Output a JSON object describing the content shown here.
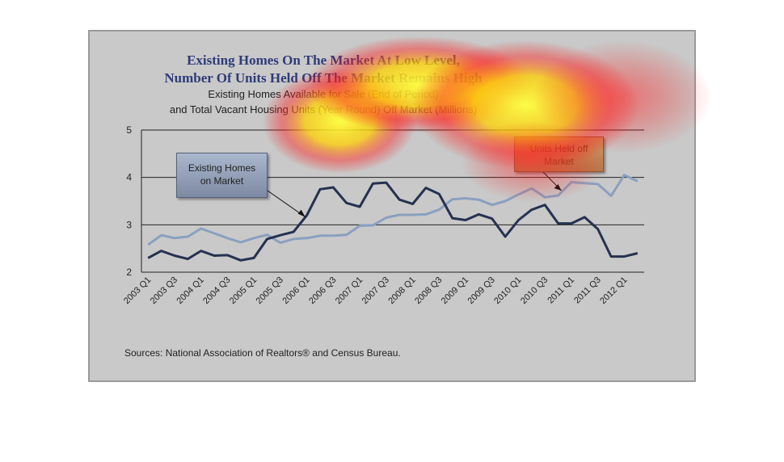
{
  "title": {
    "line1": "Existing Homes On The Market At Low Level,",
    "line2": "Number Of Units Held Off The Market Remains High",
    "subtitle1": "Existing Homes Available for Sale (End of Period)",
    "subtitle2": "and Total Vacant Housing Units (Year Round) Off Market (Millions)"
  },
  "callouts": {
    "existing_line1": "Existing Homes",
    "existing_line2": "on Market",
    "held_line1": "Units Held off",
    "held_line2": "Market"
  },
  "sources": "Sources: National Association of Realtors® and Census Bureau.",
  "colors": {
    "existing_series": "#25314f",
    "held_series": "#8aa0bf",
    "panel_bg": "#c9c9c9",
    "title": "#2f3b78"
  },
  "chart_data": {
    "type": "line",
    "title": "Existing Homes On The Market At Low Level, Number Of Units Held Off The Market Remains High",
    "subtitle": "Existing Homes Available for Sale (End of Period) and Total Vacant Housing Units (Year Round) Off Market (Millions)",
    "xlabel": "",
    "ylabel": "",
    "ylim": [
      2,
      5
    ],
    "yticks": [
      2,
      3,
      4,
      5
    ],
    "grid": true,
    "x": [
      "2003 Q1",
      "2003 Q2",
      "2003 Q3",
      "2003 Q4",
      "2004 Q1",
      "2004 Q2",
      "2004 Q3",
      "2004 Q4",
      "2005 Q1",
      "2005 Q2",
      "2005 Q3",
      "2005 Q4",
      "2006 Q1",
      "2006 Q2",
      "2006 Q3",
      "2006 Q4",
      "2007 Q1",
      "2007 Q2",
      "2007 Q3",
      "2007 Q4",
      "2008 Q1",
      "2008 Q2",
      "2008 Q3",
      "2008 Q4",
      "2009 Q1",
      "2009 Q2",
      "2009 Q3",
      "2009 Q4",
      "2010 Q1",
      "2010 Q2",
      "2010 Q3",
      "2010 Q4",
      "2011 Q1",
      "2011 Q2",
      "2011 Q3",
      "2011 Q4",
      "2012 Q1",
      "2012 Q2"
    ],
    "xtick_labels": [
      "2003 Q1",
      "2003 Q3",
      "2004 Q1",
      "2004 Q3",
      "2005 Q1",
      "2005 Q3",
      "2006 Q1",
      "2006 Q3",
      "2007 Q1",
      "2007 Q3",
      "2008 Q1",
      "2008 Q3",
      "2009 Q1",
      "2009 Q3",
      "2010 Q1",
      "2010 Q3",
      "2011 Q1",
      "2011 Q3",
      "2012 Q1"
    ],
    "series": [
      {
        "name": "Existing Homes on Market",
        "values": [
          2.3,
          2.45,
          2.35,
          2.28,
          2.45,
          2.35,
          2.36,
          2.25,
          2.3,
          2.7,
          2.78,
          2.85,
          3.2,
          3.75,
          3.79,
          3.46,
          3.38,
          3.87,
          3.89,
          3.53,
          3.44,
          3.78,
          3.65,
          3.14,
          3.1,
          3.22,
          3.13,
          2.75,
          3.1,
          3.32,
          3.42,
          3.03,
          3.03,
          3.16,
          2.91,
          2.33,
          2.33,
          2.4
        ]
      },
      {
        "name": "Units Held off Market",
        "values": [
          2.58,
          2.78,
          2.72,
          2.75,
          2.92,
          2.82,
          2.72,
          2.63,
          2.72,
          2.79,
          2.62,
          2.7,
          2.72,
          2.77,
          2.77,
          2.79,
          2.98,
          2.99,
          3.15,
          3.21,
          3.21,
          3.22,
          3.32,
          3.54,
          3.56,
          3.53,
          3.42,
          3.5,
          3.64,
          3.77,
          3.58,
          3.62,
          3.9,
          3.88,
          3.86,
          3.61,
          4.05,
          3.92
        ]
      }
    ]
  }
}
